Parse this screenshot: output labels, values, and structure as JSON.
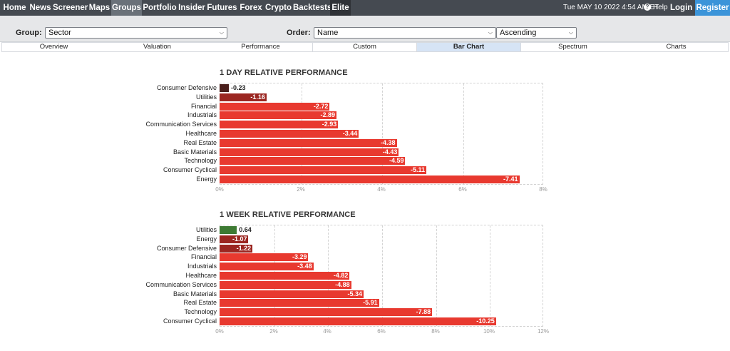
{
  "nav": {
    "items": [
      "Home",
      "News",
      "Screener",
      "Maps",
      "Groups",
      "Portfolio",
      "Insider",
      "Futures",
      "Forex",
      "Crypto",
      "Backtests",
      "Elite"
    ],
    "active": "Groups",
    "datetime": "Tue MAY 10 2022 4:54 AM ET",
    "help": "Help",
    "login": "Login",
    "register": "Register"
  },
  "filters": {
    "group_label": "Group:",
    "group_value": "Sector",
    "order_label": "Order:",
    "order_value": "Name",
    "direction_value": "Ascending"
  },
  "tabs": [
    "Overview",
    "Valuation",
    "Performance",
    "Custom",
    "Bar Chart",
    "Spectrum",
    "Charts"
  ],
  "active_tab": "Bar Chart",
  "colors": {
    "negative": "#e8392f",
    "negative_small": "#9b2621",
    "negative_tiny": "#4a1f1c",
    "positive": "#3d7a33"
  },
  "chart_data": [
    {
      "type": "bar",
      "orientation": "horizontal",
      "title": "1 DAY RELATIVE PERFORMANCE",
      "categories": [
        "Consumer Defensive",
        "Utilities",
        "Financial",
        "Industrials",
        "Communication Services",
        "Healthcare",
        "Real Estate",
        "Basic Materials",
        "Technology",
        "Consumer Cyclical",
        "Energy"
      ],
      "values": [
        -0.23,
        -1.16,
        -2.72,
        -2.89,
        -2.93,
        -3.44,
        -4.38,
        -4.43,
        -4.59,
        -5.11,
        -7.41
      ],
      "value_labels": [
        "-0.23",
        "-1.16",
        "-2.72",
        "-2.89",
        "-2.93",
        "-3.44",
        "-4.38",
        "-4.43",
        "-4.59",
        "-5.11",
        "-7.41"
      ],
      "xlim": [
        0,
        8
      ],
      "ticks": [
        "0%",
        "2%",
        "4%",
        "6%",
        "8%"
      ],
      "grid": true
    },
    {
      "type": "bar",
      "orientation": "horizontal",
      "title": "1 WEEK RELATIVE PERFORMANCE",
      "categories": [
        "Utilities",
        "Energy",
        "Consumer Defensive",
        "Financial",
        "Industrials",
        "Healthcare",
        "Communication Services",
        "Basic Materials",
        "Real Estate",
        "Technology",
        "Consumer Cyclical"
      ],
      "values": [
        0.64,
        -1.07,
        -1.22,
        -3.29,
        -3.48,
        -4.82,
        -4.88,
        -5.34,
        -5.91,
        -7.88,
        -10.25
      ],
      "value_labels": [
        "0.64",
        "-1.07",
        "-1.22",
        "-3.29",
        "-3.48",
        "-4.82",
        "-4.88",
        "-5.34",
        "-5.91",
        "-7.88",
        "-10.25"
      ],
      "xlim": [
        0,
        12
      ],
      "ticks": [
        "0%",
        "2%",
        "4%",
        "6%",
        "8%",
        "10%",
        "12%"
      ],
      "grid": true
    }
  ]
}
